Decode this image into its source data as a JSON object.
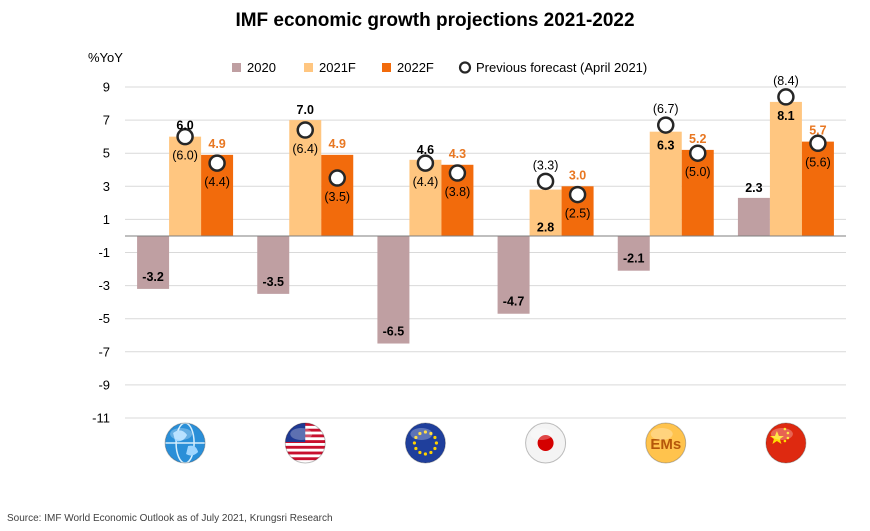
{
  "chart_data": {
    "type": "bar",
    "title": "IMF economic growth projections 2021-2022",
    "ylabel": "%YoY",
    "ylim": [
      -12,
      9
    ],
    "yticks": [
      9,
      7,
      5,
      3,
      1,
      -1,
      -3,
      -5,
      -7,
      -9,
      -11
    ],
    "grid": true,
    "legend_position": "top",
    "categories": [
      "World",
      "US",
      "Euro Area",
      "Japan",
      "EMs",
      "China"
    ],
    "category_icons": [
      "globe-icon",
      "us-flag-icon",
      "eu-flag-icon",
      "japan-flag-icon",
      "ems-badge-icon",
      "china-flag-icon"
    ],
    "ems_badge_text": "EMs",
    "series": [
      {
        "name": "2020",
        "color": "#bf9fa2",
        "values": [
          -3.2,
          -3.5,
          -6.5,
          -4.7,
          -2.1,
          2.3
        ],
        "labels": [
          "-3.2",
          "-3.5",
          "-6.5",
          "-4.7",
          "-2.1",
          "2.3"
        ],
        "label_color": "#000000"
      },
      {
        "name": "2021F",
        "color": "#ffc680",
        "values": [
          6.0,
          7.0,
          4.6,
          2.8,
          6.3,
          8.1
        ],
        "labels": [
          "6.0",
          "7.0",
          "4.6",
          "2.8",
          "6.3",
          "8.1"
        ],
        "label_color": "#000000"
      },
      {
        "name": "2022F",
        "color": "#f26b0c",
        "values": [
          4.9,
          4.9,
          4.3,
          3.0,
          5.2,
          5.7
        ],
        "labels": [
          "4.9",
          "4.9",
          "4.3",
          "3.0",
          "5.2",
          "5.7"
        ],
        "label_color": "#e87722"
      }
    ],
    "previous_forecast": {
      "name": "Previous forecast (April 2021)",
      "series_2021F": [
        6.0,
        6.4,
        4.4,
        3.3,
        6.7,
        8.4
      ],
      "labels_2021F": [
        "(6.0)",
        "(6.4)",
        "(4.4)",
        "(3.3)",
        "(6.7)",
        "(8.4)"
      ],
      "series_2022F": [
        4.4,
        3.5,
        3.8,
        2.5,
        5.0,
        5.6
      ],
      "labels_2022F": [
        "(4.4)",
        "(3.5)",
        "(3.8)",
        "(2.5)",
        "(5.0)",
        "(5.6)"
      ]
    },
    "source": "Source: IMF World Economic Outlook as of July 2021, Krungsri Research"
  }
}
